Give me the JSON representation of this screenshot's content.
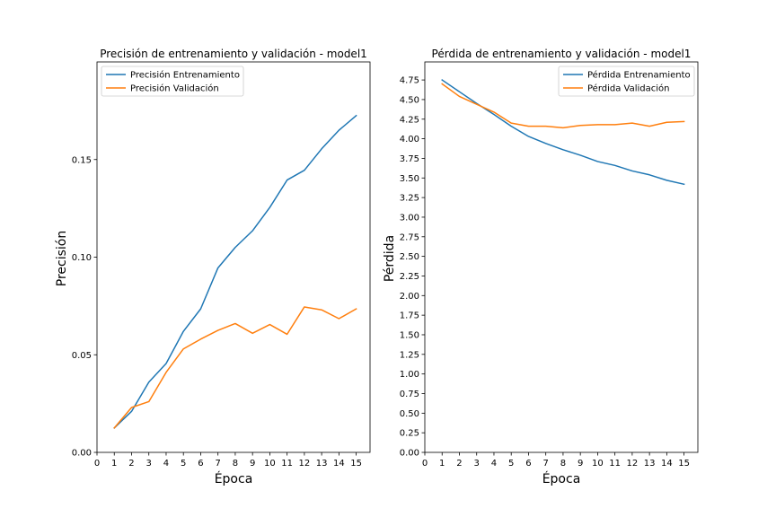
{
  "chart_data": [
    {
      "type": "line",
      "title": "Precisión de entrenamiento y validación - model1",
      "xlabel": "Época",
      "ylabel": "Precisión",
      "xlim": [
        0,
        15.8
      ],
      "ylim": [
        0,
        0.2
      ],
      "xticks": [
        0,
        1,
        2,
        3,
        4,
        5,
        6,
        7,
        8,
        9,
        10,
        11,
        12,
        13,
        14,
        15
      ],
      "yticks": [
        0.0,
        0.05,
        0.1,
        0.15
      ],
      "ytick_labels": [
        "0.00",
        "0.05",
        "0.10",
        "0.15"
      ],
      "legend_position": "upper left",
      "grid": false,
      "x": [
        1,
        2,
        3,
        4,
        5,
        6,
        7,
        8,
        9,
        10,
        11,
        12,
        13,
        14,
        15
      ],
      "series": [
        {
          "name": "Precisión Entrenamiento",
          "color": "#1f77b4",
          "values": [
            0.0125,
            0.021,
            0.036,
            0.0455,
            0.062,
            0.0735,
            0.0945,
            0.105,
            0.1135,
            0.1255,
            0.1395,
            0.1445,
            0.1555,
            0.165,
            0.1725
          ]
        },
        {
          "name": "Precisión Validación",
          "color": "#ff7f0e",
          "values": [
            0.0125,
            0.023,
            0.026,
            0.041,
            0.053,
            0.058,
            0.0625,
            0.066,
            0.061,
            0.0655,
            0.0605,
            0.0745,
            0.073,
            0.0685,
            0.0735
          ]
        }
      ]
    },
    {
      "type": "line",
      "title": "Pérdida de entrenamiento y validación - model1",
      "xlabel": "Época",
      "ylabel": "Pérdida",
      "xlim": [
        0,
        15.8
      ],
      "ylim": [
        0,
        4.98
      ],
      "xticks": [
        0,
        1,
        2,
        3,
        4,
        5,
        6,
        7,
        8,
        9,
        10,
        11,
        12,
        13,
        14,
        15
      ],
      "yticks": [
        0.0,
        0.25,
        0.5,
        0.75,
        1.0,
        1.25,
        1.5,
        1.75,
        2.0,
        2.25,
        2.5,
        2.75,
        3.0,
        3.25,
        3.5,
        3.75,
        4.0,
        4.25,
        4.5,
        4.75
      ],
      "ytick_labels": [
        "0.00",
        "0.25",
        "0.50",
        "0.75",
        "1.00",
        "1.25",
        "1.50",
        "1.75",
        "2.00",
        "2.25",
        "2.50",
        "2.75",
        "3.00",
        "3.25",
        "3.50",
        "3.75",
        "4.00",
        "4.25",
        "4.50",
        "4.75"
      ],
      "legend_position": "upper right",
      "grid": false,
      "x": [
        1,
        2,
        3,
        4,
        5,
        6,
        7,
        8,
        9,
        10,
        11,
        12,
        13,
        14,
        15
      ],
      "series": [
        {
          "name": "Pérdida Entrenamiento",
          "color": "#1f77b4",
          "values": [
            4.75,
            4.6,
            4.45,
            4.31,
            4.16,
            4.03,
            3.94,
            3.86,
            3.79,
            3.71,
            3.66,
            3.59,
            3.54,
            3.47,
            3.42
          ]
        },
        {
          "name": "Pérdida Validación",
          "color": "#ff7f0e",
          "values": [
            4.7,
            4.54,
            4.44,
            4.34,
            4.2,
            4.16,
            4.16,
            4.14,
            4.17,
            4.18,
            4.18,
            4.2,
            4.16,
            4.21,
            4.22
          ]
        }
      ]
    }
  ]
}
